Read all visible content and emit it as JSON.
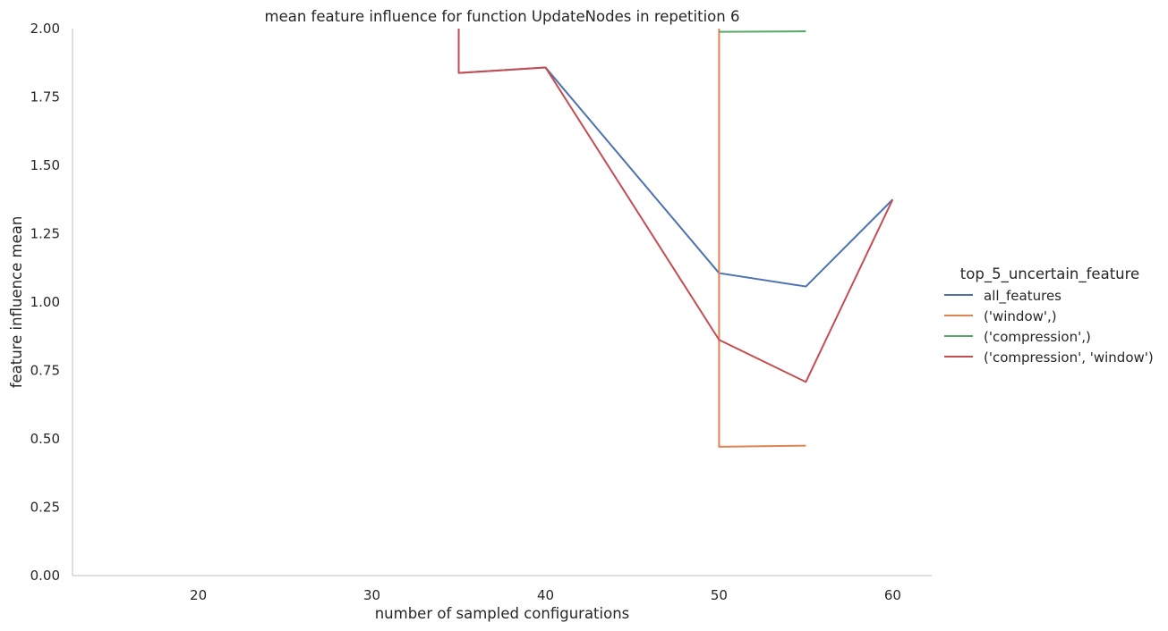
{
  "chart_data": {
    "type": "line",
    "title": "mean feature influence for function UpdateNodes in repetition 6",
    "xlabel": "number of sampled configurations",
    "ylabel": "feature influence mean",
    "xlim": [
      12.75,
      62.25
    ],
    "ylim": [
      0,
      2
    ],
    "xticks": [
      20,
      30,
      40,
      50,
      60
    ],
    "yticks": [
      "0.00",
      "0.25",
      "0.50",
      "0.75",
      "1.00",
      "1.25",
      "1.50",
      "1.75",
      "2.00"
    ],
    "grid": false,
    "legend": {
      "title": "top_5_uncertain_feature",
      "placement": "right"
    },
    "series": [
      {
        "name": "all_features",
        "color": "#4c72b0",
        "points": [
          [
            35,
            2.6
          ],
          [
            35,
            1.838
          ],
          [
            40,
            1.858
          ],
          [
            50,
            1.106
          ],
          [
            55,
            1.057
          ],
          [
            60,
            1.375
          ]
        ]
      },
      {
        "name": "('window',)",
        "color": "#dd8452",
        "points": [
          [
            50,
            2.6
          ],
          [
            50,
            0.471
          ],
          [
            55,
            0.475
          ]
        ]
      },
      {
        "name": "('compression',)",
        "color": "#55a868",
        "points": [
          [
            50,
            1.988
          ],
          [
            55,
            1.99
          ]
        ]
      },
      {
        "name": "('compression', 'window')",
        "color": "#c44e52",
        "points": [
          [
            35,
            2.6
          ],
          [
            35,
            1.838
          ],
          [
            40,
            1.858
          ],
          [
            50,
            0.862
          ],
          [
            55,
            0.708
          ],
          [
            60,
            1.375
          ]
        ]
      }
    ]
  }
}
